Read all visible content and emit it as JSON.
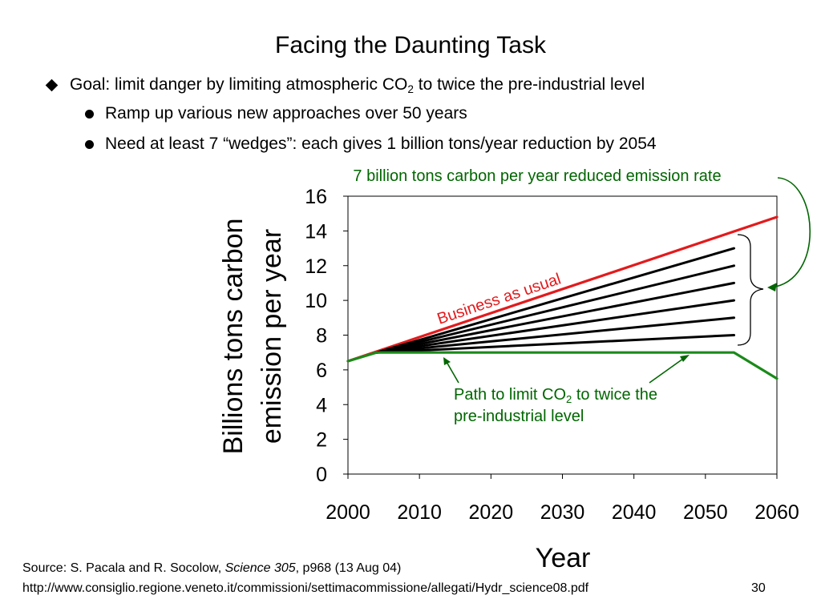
{
  "slide": {
    "title": "Facing the Daunting Task",
    "bullets": [
      {
        "pre": "Goal: limit danger by limiting atmospheric CO",
        "sub": "2",
        "post": " to twice the pre-industrial level"
      },
      {
        "text": "Ramp up various new approaches over 50 years"
      },
      {
        "text": "Need at least 7 “wedges”: each gives 1 billion tons/year reduction by 2054"
      }
    ],
    "source": {
      "pre": "Source: S. Pacala and R. Socolow, ",
      "journal": "Science 305",
      "post": ", p968 (13 Aug 04)"
    },
    "url": "http://www.consiglio.regione.veneto.it/commissioni/settimacommissione/allegati/Hydr_science08.pdf",
    "page_number": "30"
  },
  "colors": {
    "bau": "#e31a1c",
    "path": "#1a8a1a",
    "wedge": "#000000",
    "annotation": "#006600"
  },
  "chart_data": {
    "type": "line",
    "xlabel": "Year",
    "ylabel_lines": [
      "Billions tons carbon",
      "emission per year"
    ],
    "xlim": [
      2000,
      2060
    ],
    "ylim": [
      0,
      16
    ],
    "xticks": [
      2000,
      2010,
      2020,
      2030,
      2040,
      2050,
      2060
    ],
    "yticks": [
      0,
      2,
      4,
      6,
      8,
      10,
      12,
      14,
      16
    ],
    "grid": false,
    "series": [
      {
        "name": "Business as usual",
        "role": "bau",
        "x": [
          2000,
          2060
        ],
        "y": [
          6.5,
          14.8
        ]
      },
      {
        "role": "wedge",
        "x": [
          2004,
          2054
        ],
        "y": [
          7,
          13
        ]
      },
      {
        "role": "wedge",
        "x": [
          2004,
          2054
        ],
        "y": [
          7,
          12
        ]
      },
      {
        "role": "wedge",
        "x": [
          2004,
          2054
        ],
        "y": [
          7,
          11
        ]
      },
      {
        "role": "wedge",
        "x": [
          2004,
          2054
        ],
        "y": [
          7,
          10
        ]
      },
      {
        "role": "wedge",
        "x": [
          2004,
          2054
        ],
        "y": [
          7,
          9
        ]
      },
      {
        "role": "wedge",
        "x": [
          2004,
          2054
        ],
        "y": [
          7,
          8
        ]
      },
      {
        "role": "path",
        "x": [
          2000,
          2004,
          2054,
          2060
        ],
        "y": [
          6.5,
          7,
          7,
          5.5
        ]
      }
    ],
    "annotations": {
      "wedges_label": "7 billion tons carbon per year reduced emission rate",
      "path_label": {
        "line1_pre": "Path to limit CO",
        "line1_sub": "2",
        "line1_post": " to twice the",
        "line2": "pre-industrial level"
      }
    }
  }
}
